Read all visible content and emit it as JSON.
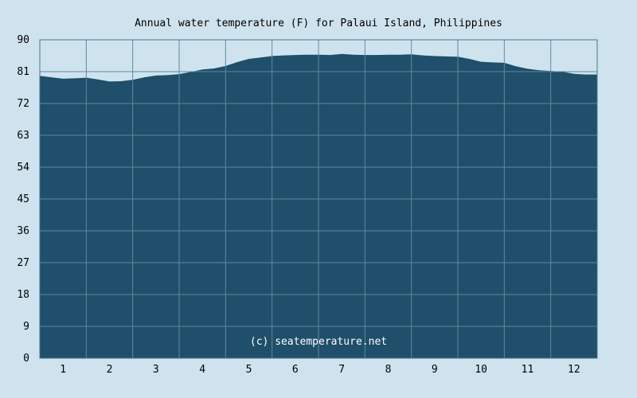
{
  "colors": {
    "background": "#cfe3ee",
    "area_fill": "#1f4f6a",
    "grid": "#5d8aa3",
    "frame": "#4a7690"
  },
  "chart_data": {
    "type": "area",
    "title": "Annual water temperature (F) for Palaui Island, Philippines",
    "xlabel": "",
    "ylabel": "",
    "categories": [
      "1",
      "2",
      "3",
      "4",
      "5",
      "6",
      "7",
      "8",
      "9",
      "10",
      "11",
      "12"
    ],
    "yticks": [
      "0",
      "9",
      "18",
      "27",
      "36",
      "45",
      "54",
      "63",
      "72",
      "81",
      "90"
    ],
    "ylim": [
      0,
      90
    ],
    "xlim": [
      0.5,
      12.5
    ],
    "grid": true,
    "legend": "none",
    "watermark": "(c) seatemperature.net",
    "series": [
      {
        "x": [
          0.5,
          0.75,
          1.0,
          1.25,
          1.5,
          1.75,
          2.0,
          2.25,
          2.5,
          2.75,
          3.0,
          3.25,
          3.5,
          3.75,
          4.0,
          4.25,
          4.5,
          4.75,
          5.0,
          5.25,
          5.5,
          5.75,
          6.0,
          6.25,
          6.5,
          6.75,
          7.0,
          7.25,
          7.5,
          7.75,
          8.0,
          8.25,
          8.5,
          8.75,
          9.0,
          9.25,
          9.5,
          9.75,
          10.0,
          10.25,
          10.5,
          10.75,
          11.0,
          11.25,
          11.5,
          11.75,
          12.0,
          12.25,
          12.5
        ],
        "values": [
          79.8,
          79.4,
          79.0,
          79.1,
          79.3,
          78.8,
          78.2,
          78.3,
          78.7,
          79.4,
          79.9,
          80.0,
          80.3,
          80.9,
          81.6,
          81.9,
          82.6,
          83.7,
          84.6,
          85.0,
          85.4,
          85.6,
          85.7,
          85.8,
          85.8,
          85.7,
          86.0,
          85.8,
          85.7,
          85.7,
          85.8,
          85.8,
          85.9,
          85.6,
          85.4,
          85.3,
          85.2,
          84.6,
          83.8,
          83.6,
          83.5,
          82.5,
          81.8,
          81.4,
          81.2,
          81.0,
          80.4,
          80.2,
          80.2
        ]
      }
    ]
  }
}
